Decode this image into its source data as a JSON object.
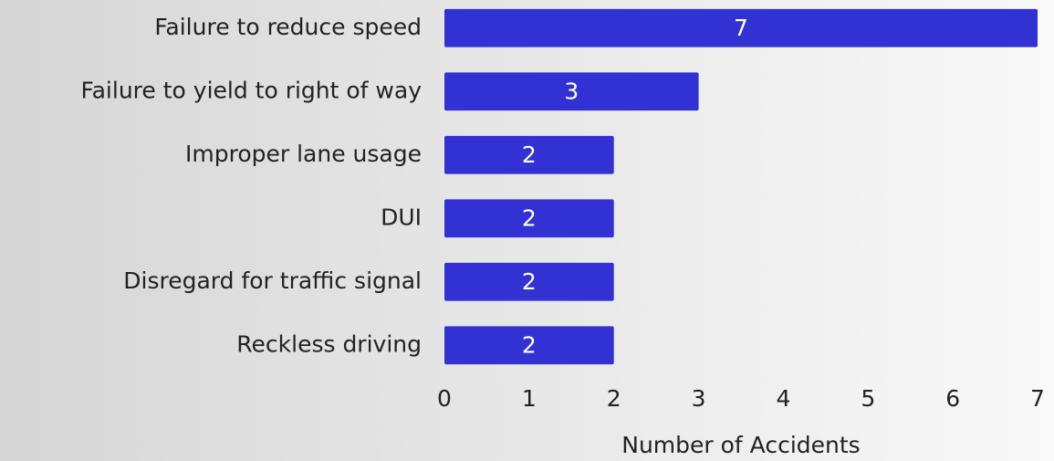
{
  "chart_data": {
    "type": "bar",
    "orientation": "horizontal",
    "categories": [
      "Failure to reduce speed",
      "Failure to yield to right of way",
      "Improper lane usage",
      "DUI",
      "Disregard for traffic signal",
      "Reckless driving"
    ],
    "values": [
      7,
      3,
      2,
      2,
      2,
      2
    ],
    "color": "#3131d4",
    "xlabel": "Number of Accidents",
    "xlim": [
      0,
      7
    ],
    "xticks": [
      0,
      1,
      2,
      3,
      4,
      5,
      6,
      7
    ],
    "grid": false
  }
}
